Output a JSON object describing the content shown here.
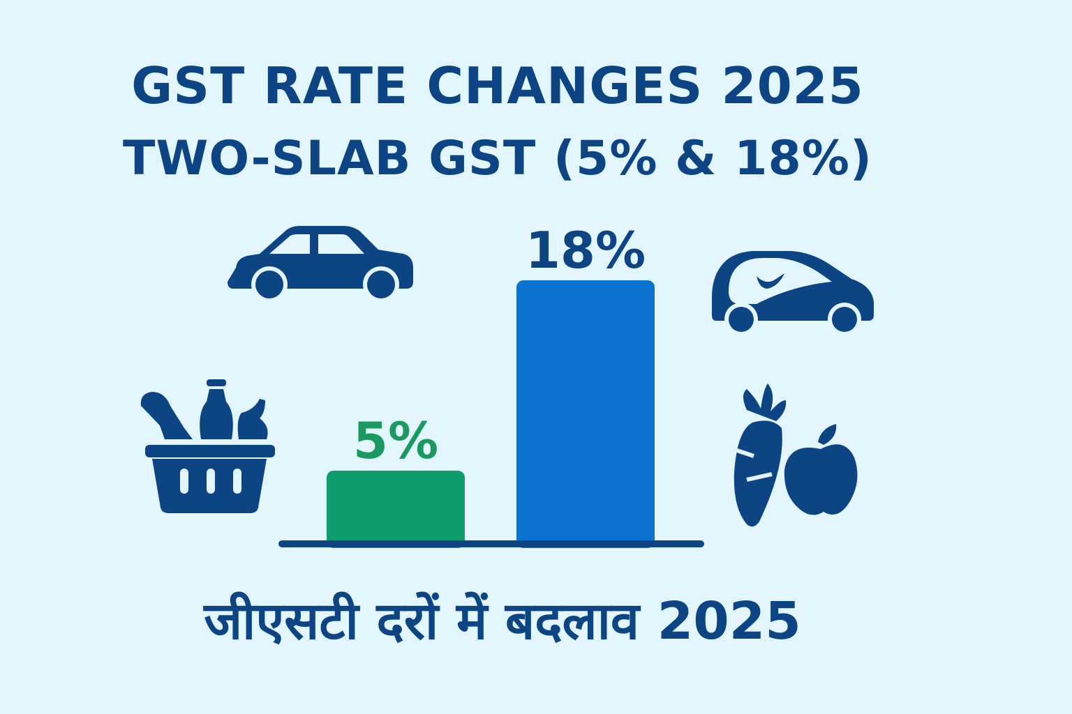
{
  "header": {
    "title": "GST RATE CHANGES 2025",
    "subtitle": "TWO-SLAB GST (5% & 18%)"
  },
  "footer": {
    "hindi_title": "जीएसटी दरों में बदलाव 2025"
  },
  "chart_data": {
    "type": "bar",
    "categories": [
      "",
      ""
    ],
    "values": [
      5,
      18
    ],
    "data_labels": [
      "5%",
      "18%"
    ],
    "colors": [
      "#0f9d6e",
      "#0a74d0"
    ],
    "label_colors": [
      "#1a9a60",
      "#0d4584"
    ],
    "axis_color": "#0d4584",
    "ylim": [
      0,
      18
    ],
    "grid": false,
    "legend": "none"
  },
  "icons": {
    "left_top": "car-icon",
    "right_top": "electric-car-icon",
    "left_bottom": "grocery-basket-icon",
    "right_bottom": "carrot-apple-icon",
    "color": "#0d4584"
  }
}
